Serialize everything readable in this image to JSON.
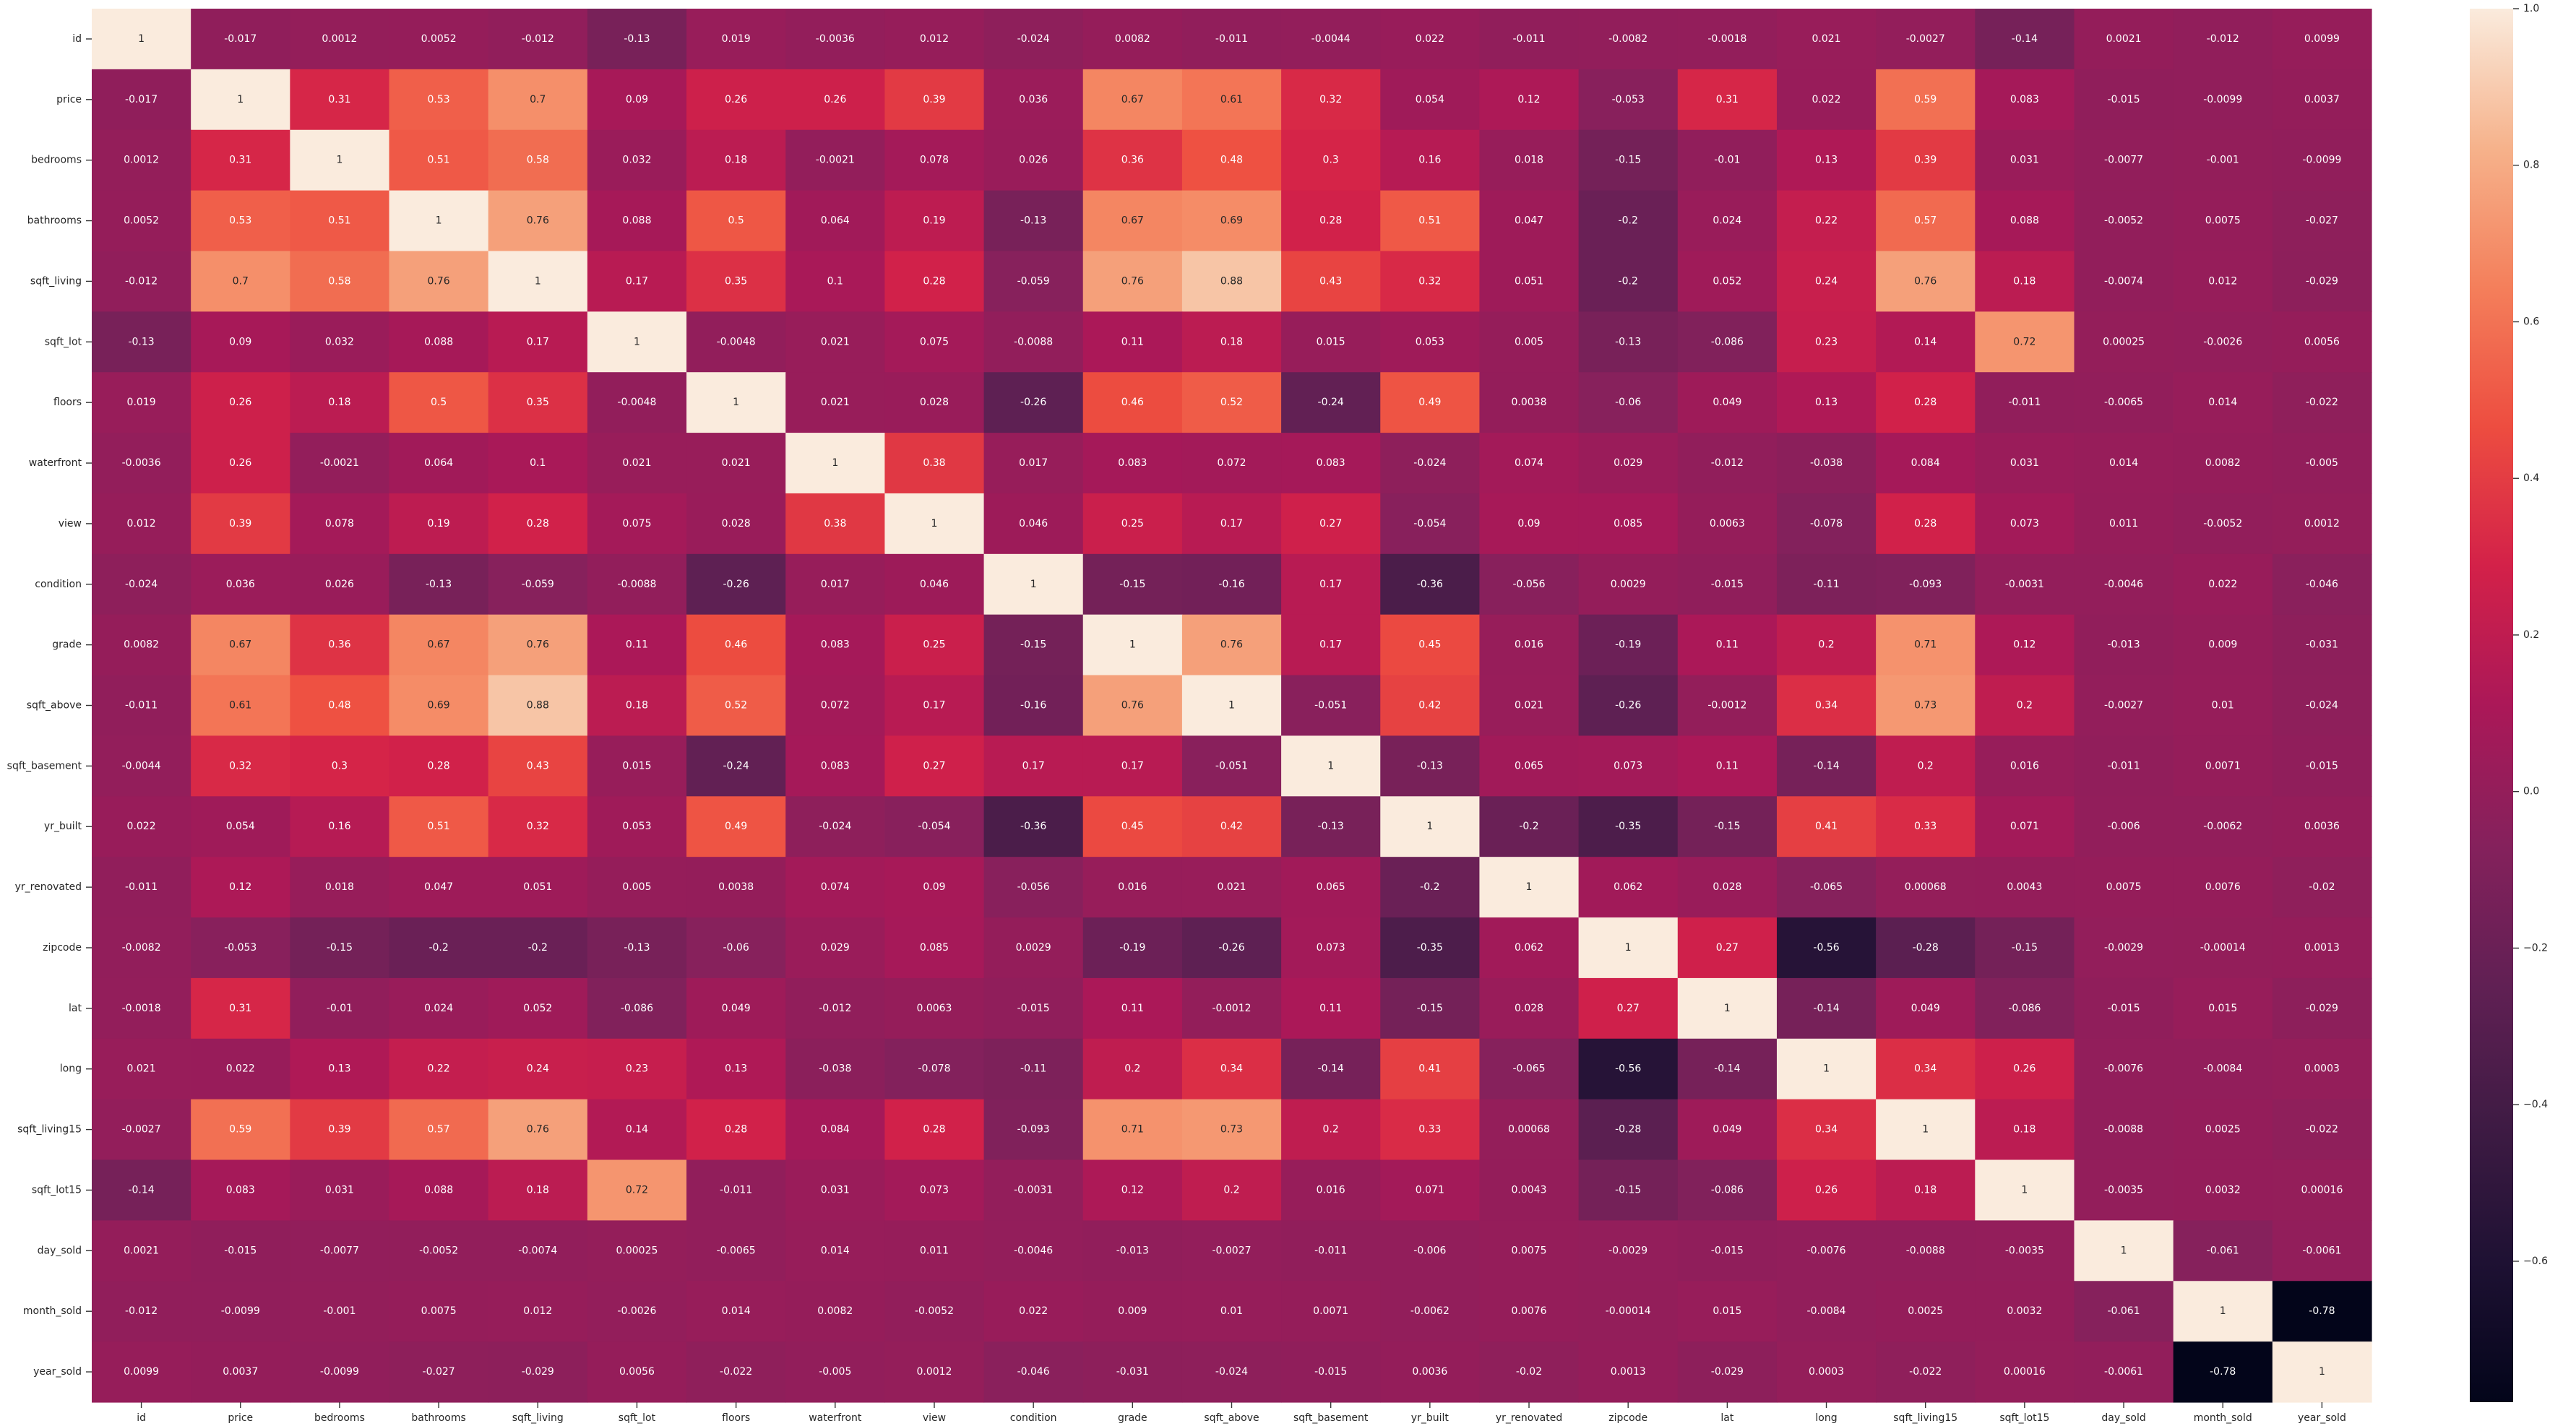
{
  "chart_data": {
    "type": "heatmap",
    "title": "",
    "xlabel": "",
    "ylabel": "",
    "variables": [
      "id",
      "price",
      "bedrooms",
      "bathrooms",
      "sqft_living",
      "sqft_lot",
      "floors",
      "waterfront",
      "view",
      "condition",
      "grade",
      "sqft_above",
      "sqft_basement",
      "yr_built",
      "yr_renovated",
      "zipcode",
      "lat",
      "long",
      "sqft_living15",
      "sqft_lot15",
      "day_sold",
      "month_sold",
      "year_sold"
    ],
    "values": [
      [
        1,
        -0.017,
        0.0012,
        0.0052,
        -0.012,
        -0.13,
        0.019,
        -0.0036,
        0.012,
        -0.024,
        0.0082,
        -0.011,
        -0.0044,
        0.022,
        -0.011,
        -0.0082,
        -0.0018,
        0.021,
        -0.0027,
        -0.14,
        0.0021,
        -0.012,
        0.0099
      ],
      [
        -0.017,
        1,
        0.31,
        0.53,
        0.7,
        0.09,
        0.26,
        0.26,
        0.39,
        0.036,
        0.67,
        0.61,
        0.32,
        0.054,
        0.12,
        -0.053,
        0.31,
        0.022,
        0.59,
        0.083,
        -0.015,
        -0.0099,
        0.0037
      ],
      [
        0.0012,
        0.31,
        1,
        0.51,
        0.58,
        0.032,
        0.18,
        -0.0021,
        0.078,
        0.026,
        0.36,
        0.48,
        0.3,
        0.16,
        0.018,
        -0.15,
        -0.01,
        0.13,
        0.39,
        0.031,
        -0.0077,
        -0.001,
        -0.0099
      ],
      [
        0.0052,
        0.53,
        0.51,
        1,
        0.76,
        0.088,
        0.5,
        0.064,
        0.19,
        -0.13,
        0.67,
        0.69,
        0.28,
        0.51,
        0.047,
        -0.2,
        0.024,
        0.22,
        0.57,
        0.088,
        -0.0052,
        0.0075,
        -0.027
      ],
      [
        -0.012,
        0.7,
        0.58,
        0.76,
        1,
        0.17,
        0.35,
        0.1,
        0.28,
        -0.059,
        0.76,
        0.88,
        0.43,
        0.32,
        0.051,
        -0.2,
        0.052,
        0.24,
        0.76,
        0.18,
        -0.0074,
        0.012,
        -0.029
      ],
      [
        -0.13,
        0.09,
        0.032,
        0.088,
        0.17,
        1,
        -0.0048,
        0.021,
        0.075,
        -0.0088,
        0.11,
        0.18,
        0.015,
        0.053,
        0.005,
        -0.13,
        -0.086,
        0.23,
        0.14,
        0.72,
        0.00025,
        -0.0026,
        0.0056
      ],
      [
        0.019,
        0.26,
        0.18,
        0.5,
        0.35,
        -0.0048,
        1,
        0.021,
        0.028,
        -0.26,
        0.46,
        0.52,
        -0.24,
        0.49,
        0.0038,
        -0.06,
        0.049,
        0.13,
        0.28,
        -0.011,
        -0.0065,
        0.014,
        -0.022
      ],
      [
        -0.0036,
        0.26,
        -0.0021,
        0.064,
        0.1,
        0.021,
        0.021,
        1,
        0.38,
        0.017,
        0.083,
        0.072,
        0.083,
        -0.024,
        0.074,
        0.029,
        -0.012,
        -0.038,
        0.084,
        0.031,
        0.014,
        0.0082,
        -0.005
      ],
      [
        0.012,
        0.39,
        0.078,
        0.19,
        0.28,
        0.075,
        0.028,
        0.38,
        1,
        0.046,
        0.25,
        0.17,
        0.27,
        -0.054,
        0.09,
        0.085,
        0.0063,
        -0.078,
        0.28,
        0.073,
        0.011,
        -0.0052,
        0.0012
      ],
      [
        -0.024,
        0.036,
        0.026,
        -0.13,
        -0.059,
        -0.0088,
        -0.26,
        0.017,
        0.046,
        1,
        -0.15,
        -0.16,
        0.17,
        -0.36,
        -0.056,
        0.0029,
        -0.015,
        -0.11,
        -0.093,
        -0.0031,
        -0.0046,
        0.022,
        -0.046
      ],
      [
        0.0082,
        0.67,
        0.36,
        0.67,
        0.76,
        0.11,
        0.46,
        0.083,
        0.25,
        -0.15,
        1,
        0.76,
        0.17,
        0.45,
        0.016,
        -0.19,
        0.11,
        0.2,
        0.71,
        0.12,
        -0.013,
        0.009,
        -0.031
      ],
      [
        -0.011,
        0.61,
        0.48,
        0.69,
        0.88,
        0.18,
        0.52,
        0.072,
        0.17,
        -0.16,
        0.76,
        1,
        -0.051,
        0.42,
        0.021,
        -0.26,
        -0.0012,
        0.34,
        0.73,
        0.2,
        -0.0027,
        0.01,
        -0.024
      ],
      [
        -0.0044,
        0.32,
        0.3,
        0.28,
        0.43,
        0.015,
        -0.24,
        0.083,
        0.27,
        0.17,
        0.17,
        -0.051,
        1,
        -0.13,
        0.065,
        0.073,
        0.11,
        -0.14,
        0.2,
        0.016,
        -0.011,
        0.0071,
        -0.015
      ],
      [
        0.022,
        0.054,
        0.16,
        0.51,
        0.32,
        0.053,
        0.49,
        -0.024,
        -0.054,
        -0.36,
        0.45,
        0.42,
        -0.13,
        1,
        -0.2,
        -0.35,
        -0.15,
        0.41,
        0.33,
        0.071,
        -0.006,
        -0.0062,
        0.0036
      ],
      [
        -0.011,
        0.12,
        0.018,
        0.047,
        0.051,
        0.005,
        0.0038,
        0.074,
        0.09,
        -0.056,
        0.016,
        0.021,
        0.065,
        -0.2,
        1,
        0.062,
        0.028,
        -0.065,
        0.00068,
        0.0043,
        0.0075,
        0.0076,
        -0.02
      ],
      [
        -0.0082,
        -0.053,
        -0.15,
        -0.2,
        -0.2,
        -0.13,
        -0.06,
        0.029,
        0.085,
        0.0029,
        -0.19,
        -0.26,
        0.073,
        -0.35,
        0.062,
        1,
        0.27,
        -0.56,
        -0.28,
        -0.15,
        -0.0029,
        -0.00014,
        0.0013
      ],
      [
        -0.0018,
        0.31,
        -0.01,
        0.024,
        0.052,
        -0.086,
        0.049,
        -0.012,
        0.0063,
        -0.015,
        0.11,
        -0.0012,
        0.11,
        -0.15,
        0.028,
        0.27,
        1,
        -0.14,
        0.049,
        -0.086,
        -0.015,
        0.015,
        -0.029
      ],
      [
        0.021,
        0.022,
        0.13,
        0.22,
        0.24,
        0.23,
        0.13,
        -0.038,
        -0.078,
        -0.11,
        0.2,
        0.34,
        -0.14,
        0.41,
        -0.065,
        -0.56,
        -0.14,
        1,
        0.34,
        0.26,
        -0.0076,
        -0.0084,
        0.0003
      ],
      [
        -0.0027,
        0.59,
        0.39,
        0.57,
        0.76,
        0.14,
        0.28,
        0.084,
        0.28,
        -0.093,
        0.71,
        0.73,
        0.2,
        0.33,
        0.00068,
        -0.28,
        0.049,
        0.34,
        1,
        0.18,
        -0.0088,
        0.0025,
        -0.022
      ],
      [
        -0.14,
        0.083,
        0.031,
        0.088,
        0.18,
        0.72,
        -0.011,
        0.031,
        0.073,
        -0.0031,
        0.12,
        0.2,
        0.016,
        0.071,
        0.0043,
        -0.15,
        -0.086,
        0.26,
        0.18,
        1,
        -0.0035,
        0.0032,
        0.00016
      ],
      [
        0.0021,
        -0.015,
        -0.0077,
        -0.0052,
        -0.0074,
        0.00025,
        -0.0065,
        0.014,
        0.011,
        -0.0046,
        -0.013,
        -0.0027,
        -0.011,
        -0.006,
        0.0075,
        -0.0029,
        -0.015,
        -0.0076,
        -0.0088,
        -0.0035,
        1,
        -0.061,
        -0.0061
      ],
      [
        -0.012,
        -0.0099,
        -0.001,
        0.0075,
        0.012,
        -0.0026,
        0.014,
        0.0082,
        -0.0052,
        0.022,
        0.009,
        0.01,
        0.0071,
        -0.0062,
        0.0076,
        -0.00014,
        0.015,
        -0.0084,
        0.0025,
        0.0032,
        -0.061,
        1,
        -0.78
      ],
      [
        0.0099,
        0.0037,
        -0.0099,
        -0.027,
        -0.029,
        0.0056,
        -0.022,
        -0.005,
        0.0012,
        -0.046,
        -0.031,
        -0.024,
        -0.015,
        0.0036,
        -0.02,
        0.0013,
        -0.029,
        0.0003,
        -0.022,
        0.00016,
        -0.0061,
        -0.78,
        1
      ]
    ],
    "colorbar": {
      "range": [
        -0.78,
        1
      ],
      "ticks": [
        -0.6,
        -0.4,
        -0.2,
        0.0,
        0.2,
        0.4,
        0.6,
        0.8,
        1.0
      ],
      "tick_labels": [
        "−0.6",
        "−0.4",
        "−0.2",
        "0.0",
        "0.2",
        "0.4",
        "0.6",
        "0.8",
        "1.0"
      ],
      "colormap": "rocket"
    },
    "annotated": true,
    "grid": false,
    "legend": "colorbar-right"
  }
}
